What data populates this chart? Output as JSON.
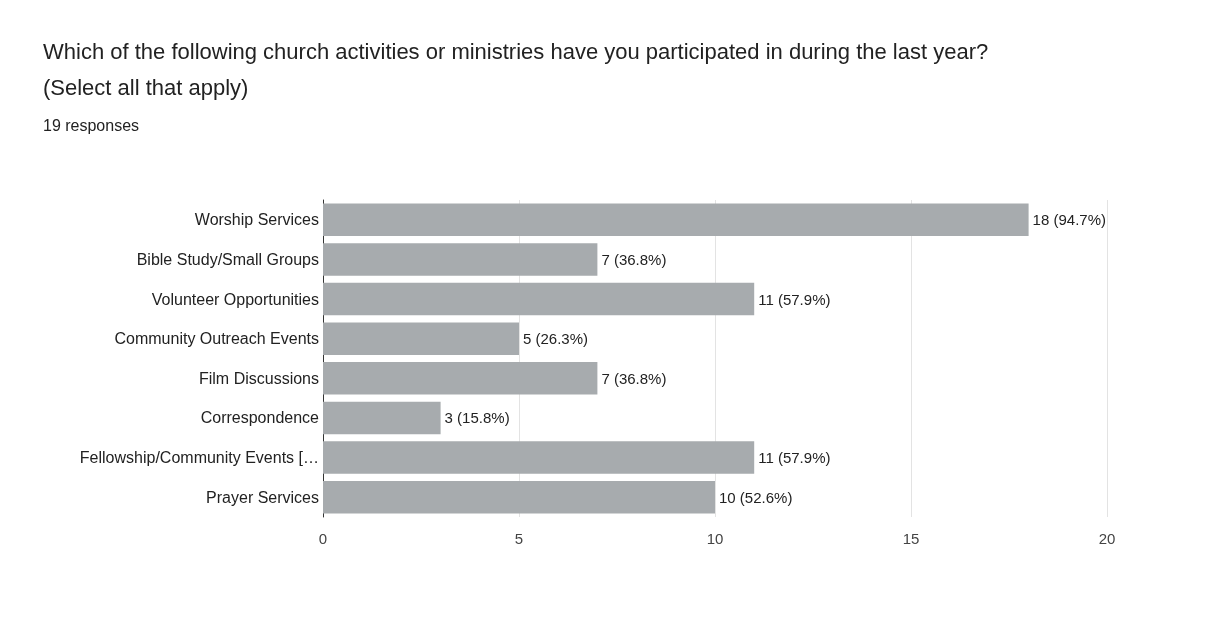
{
  "chart_data": {
    "type": "bar",
    "orientation": "horizontal",
    "title": "Which of the following church activities or ministries have you participated in during the last year?\n(Select all that apply)",
    "subtitle": "19 responses",
    "categories": [
      "Worship Services",
      "Bible Study/Small Groups",
      "Volunteer Opportunities",
      "Community Outreach Events",
      "Film Discussions",
      "Correspondence",
      "Fellowship/Community Events […",
      "Prayer Services"
    ],
    "values": [
      18,
      7,
      11,
      5,
      7,
      3,
      11,
      10
    ],
    "value_labels": [
      "18 (94.7%)",
      "7 (36.8%)",
      "11 (57.9%)",
      "5 (26.3%)",
      "7 (36.8%)",
      "3 (15.8%)",
      "11 (57.9%)",
      "10 (52.6%)"
    ],
    "color": "#a7abae",
    "xlim": [
      0,
      20
    ],
    "xticks": [
      0,
      5,
      10,
      15,
      20
    ],
    "grid": "x"
  }
}
